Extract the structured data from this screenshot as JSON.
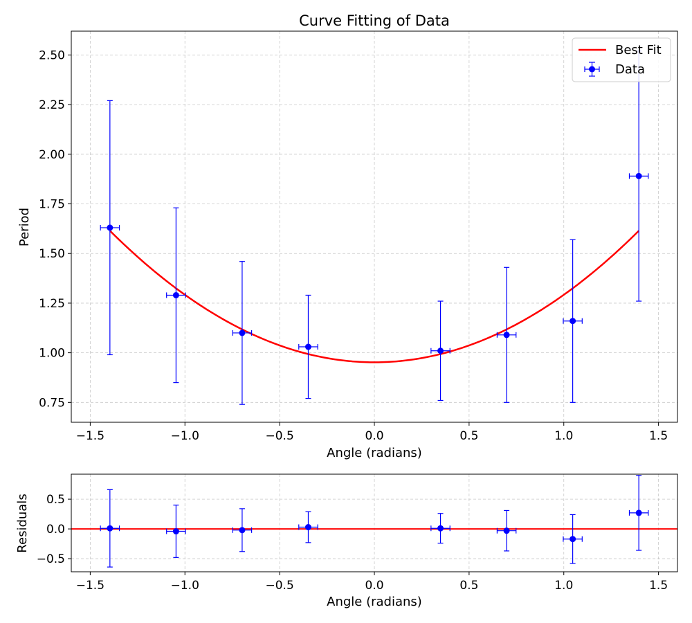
{
  "chart_data": [
    {
      "type": "scatter",
      "title": "Curve Fitting of Data",
      "xlabel": "Angle (radians)",
      "ylabel": "Period",
      "xlim": [
        -1.6,
        1.6
      ],
      "ylim": [
        0.65,
        2.62
      ],
      "xticks": [
        -1.5,
        -1.0,
        -0.5,
        0.0,
        0.5,
        1.0,
        1.5
      ],
      "xtick_labels": [
        "−1.5",
        "−1.0",
        "−0.5",
        "0.0",
        "0.5",
        "1.0",
        "1.5"
      ],
      "yticks": [
        0.75,
        1.0,
        1.25,
        1.5,
        1.75,
        2.0,
        2.25,
        2.5
      ],
      "ytick_labels": [
        "0.75",
        "1.00",
        "1.25",
        "1.50",
        "1.75",
        "2.00",
        "2.25",
        "2.50"
      ],
      "grid": true,
      "legend_position": "upper-right",
      "series": [
        {
          "name": "Data",
          "kind": "errorbar",
          "color": "#0000ff",
          "x": [
            -1.396,
            -1.047,
            -0.698,
            -0.349,
            0.349,
            0.698,
            1.047,
            1.396
          ],
          "y": [
            1.63,
            1.29,
            1.1,
            1.03,
            1.01,
            1.09,
            1.16,
            1.89
          ],
          "xerr": [
            0.05,
            0.05,
            0.05,
            0.05,
            0.05,
            0.05,
            0.05,
            0.05
          ],
          "yerr": [
            0.64,
            0.44,
            0.36,
            0.26,
            0.25,
            0.34,
            0.41,
            0.63
          ]
        },
        {
          "name": "Best Fit",
          "kind": "line",
          "color": "#ff0000",
          "model": {
            "form": "a + b*x^2",
            "a": 0.952,
            "b": 0.34
          },
          "x_range": [
            -1.396,
            1.396
          ]
        }
      ]
    },
    {
      "type": "scatter",
      "title": "",
      "xlabel": "Angle (radians)",
      "ylabel": "Residuals",
      "xlim": [
        -1.6,
        1.6
      ],
      "ylim": [
        -0.72,
        0.92
      ],
      "xticks": [
        -1.5,
        -1.0,
        -0.5,
        0.0,
        0.5,
        1.0,
        1.5
      ],
      "xtick_labels": [
        "−1.5",
        "−1.0",
        "−0.5",
        "0.0",
        "0.5",
        "1.0",
        "1.5"
      ],
      "yticks": [
        -0.5,
        0.0,
        0.5
      ],
      "ytick_labels": [
        "−0.5",
        "0.0",
        "0.5"
      ],
      "grid": true,
      "series": [
        {
          "kind": "errorbar",
          "color": "#0000ff",
          "x": [
            -1.396,
            -1.047,
            -0.698,
            -0.349,
            0.349,
            0.698,
            1.047,
            1.396
          ],
          "y": [
            0.01,
            -0.04,
            -0.02,
            0.03,
            0.01,
            -0.03,
            -0.17,
            0.27
          ],
          "xerr": [
            0.05,
            0.05,
            0.05,
            0.05,
            0.05,
            0.05,
            0.05,
            0.05
          ],
          "yerr": [
            0.65,
            0.44,
            0.36,
            0.26,
            0.25,
            0.34,
            0.41,
            0.63
          ]
        },
        {
          "kind": "hline",
          "color": "#ff0000",
          "y": 0.0
        }
      ]
    }
  ]
}
